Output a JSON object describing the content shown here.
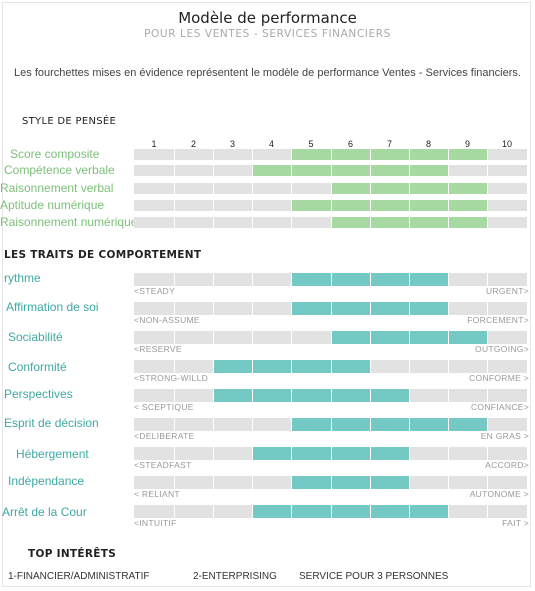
{
  "header": {
    "title": "Modèle de performance",
    "subtitle": "POUR LES VENTES - SERVICES FINANCIERS",
    "description": "Les fourchettes mises en évidence représentent le modèle de performance Ventes - Services financiers."
  },
  "colors": {
    "thinking_fill": "#a7d9a3",
    "behavior_fill": "#75c9c5",
    "track": "#e2e2e2",
    "thinking_label": "#7cc07a",
    "behavior_label": "#3ea8a4"
  },
  "sections": {
    "thinking": "STYLE DE PENSÉE",
    "behavior": "LES TRAITS DE COMPORTEMENT",
    "interests": "TOP INTÉRÊTS"
  },
  "chart_data": {
    "type": "bar",
    "scale": [
      "1",
      "2",
      "3",
      "4",
      "5",
      "6",
      "7",
      "8",
      "9",
      "10"
    ],
    "thinking": [
      {
        "label": "Score composite",
        "range": [
          5,
          9
        ]
      },
      {
        "label": "Compétence verbale",
        "range": [
          4,
          8
        ]
      },
      {
        "label": "Raisonnement verbal",
        "range": [
          6,
          9
        ]
      },
      {
        "label": "Aptitude numérique",
        "range": [
          5,
          9
        ]
      },
      {
        "label": "Raisonnement numérique",
        "range": [
          6,
          9
        ]
      }
    ],
    "behavior": [
      {
        "label": "rythme",
        "low": "<STEADY",
        "high": "URGENT>",
        "range": [
          5,
          8
        ]
      },
      {
        "label": "Affirmation de soi",
        "low": "<NON-ASSUME",
        "high": "FORCEMENT>",
        "range": [
          5,
          8
        ]
      },
      {
        "label": "Sociabilité",
        "low": "<RESERVE",
        "high": "OUTGOING>",
        "range": [
          6,
          9
        ]
      },
      {
        "label": "Conformité",
        "low": "<STRONG-WILLD",
        "high": "CONFORME >",
        "range": [
          3,
          6
        ]
      },
      {
        "label": "Perspectives",
        "low": "< SCEPTIQUE",
        "high": "CONFIANCE>",
        "range": [
          3,
          7
        ]
      },
      {
        "label": "Esprit de décision",
        "low": "<DELIBERATE",
        "high": "EN GRAS >",
        "range": [
          5,
          9
        ]
      },
      {
        "label": "Hébergement",
        "low": "<STEADFAST",
        "high": "ACCORD>",
        "range": [
          4,
          7
        ]
      },
      {
        "label": "Indépendance",
        "low": "< RELIANT",
        "high": "AUTONOME >",
        "range": [
          5,
          7
        ]
      },
      {
        "label": "Arrêt de la Cour",
        "low": "<INTUITIF",
        "high": "FAIT >",
        "range": [
          4,
          8
        ]
      }
    ]
  },
  "interests": [
    "1-FINANCIER/ADMINISTRATIF",
    "2-ENTERPRISING",
    "SERVICE POUR 3 PERSONNES"
  ]
}
